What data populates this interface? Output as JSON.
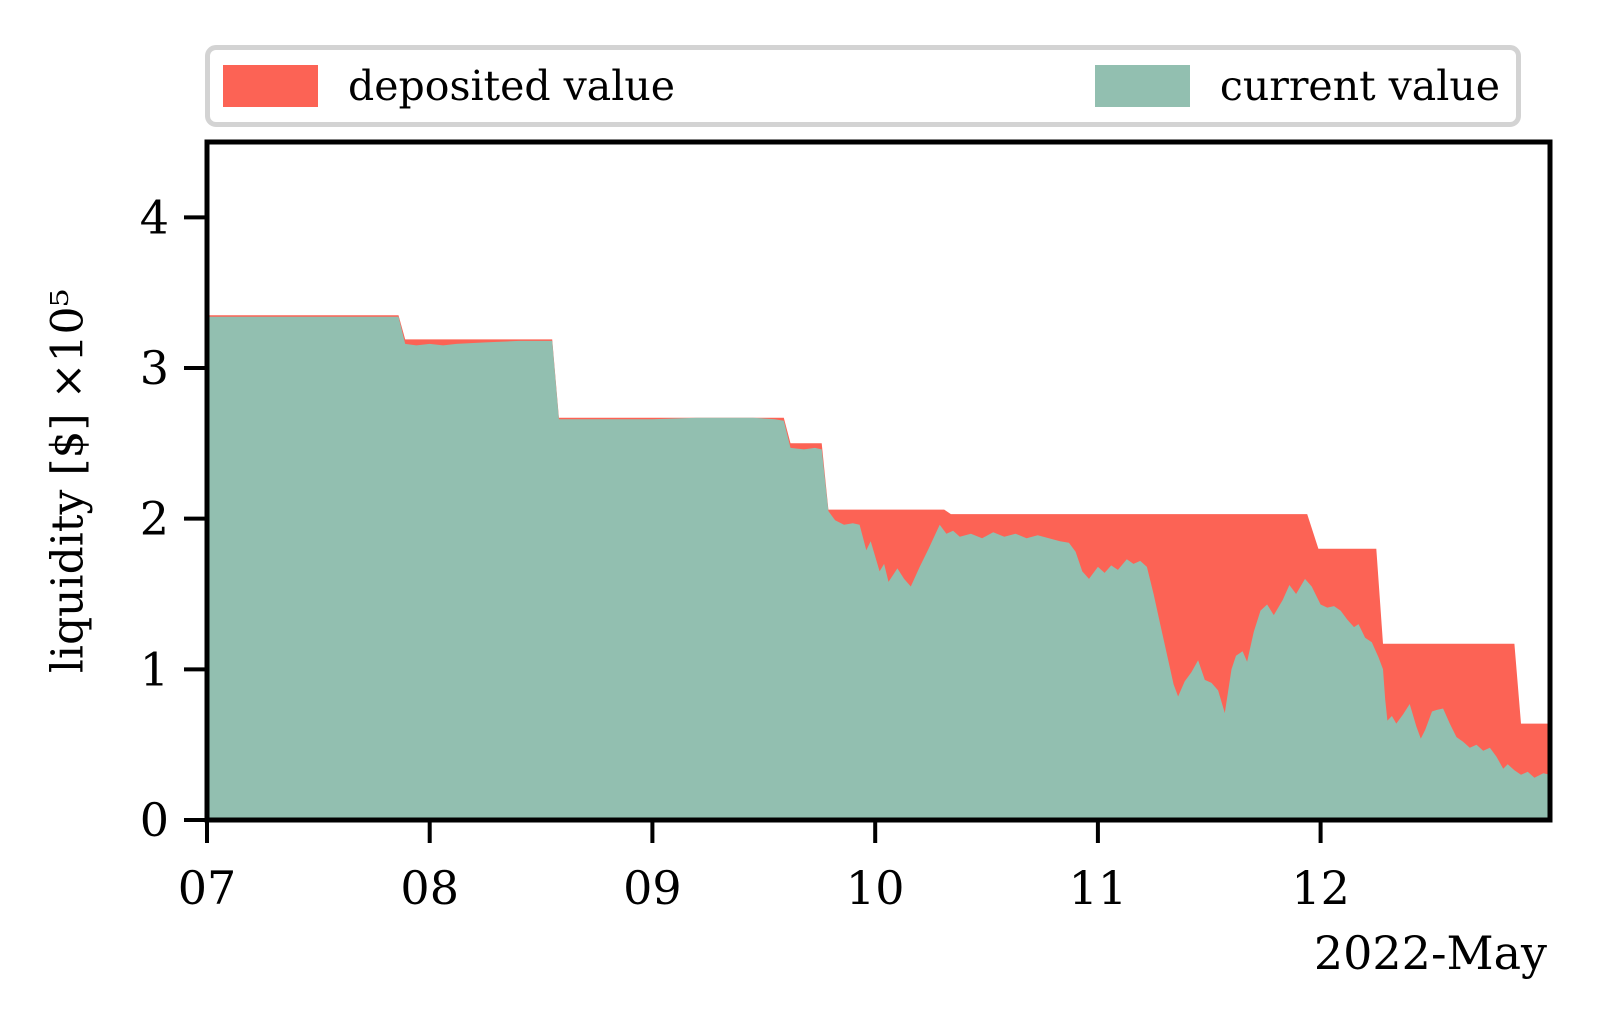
{
  "chart_data": {
    "type": "area",
    "title": "",
    "x_axis": {
      "label": "2022-May",
      "tick_labels": [
        "07",
        "08",
        "09",
        "10",
        "11",
        "12"
      ],
      "tick_values": [
        7,
        8,
        9,
        10,
        11,
        12
      ],
      "range": [
        7,
        13.03
      ]
    },
    "y_axis": {
      "label": "liquidity [$] ×10⁵",
      "tick_labels": [
        "0",
        "1",
        "2",
        "3",
        "4"
      ],
      "tick_values": [
        0,
        1,
        2,
        3,
        4
      ],
      "range": [
        0,
        4.5
      ]
    },
    "grid": "off",
    "legend": {
      "position": "top",
      "border_color": "#d3d3d3",
      "entries": [
        {
          "label": "deposited value",
          "color": "#fc6355"
        },
        {
          "label": "current value",
          "color": "#92bfb0"
        }
      ]
    },
    "series": [
      {
        "name": "deposited value",
        "color": "#fc6355",
        "points": [
          [
            7.0,
            3.35
          ],
          [
            7.86,
            3.35
          ],
          [
            7.89,
            3.19
          ],
          [
            8.55,
            3.19
          ],
          [
            8.58,
            2.67
          ],
          [
            9.59,
            2.67
          ],
          [
            9.62,
            2.5
          ],
          [
            9.76,
            2.5
          ],
          [
            9.79,
            2.06
          ],
          [
            10.31,
            2.06
          ],
          [
            10.34,
            2.03
          ],
          [
            11.94,
            2.03
          ],
          [
            11.99,
            1.8
          ],
          [
            12.25,
            1.8
          ],
          [
            12.28,
            1.17
          ],
          [
            12.87,
            1.17
          ],
          [
            12.9,
            0.64
          ],
          [
            13.03,
            0.64
          ]
        ]
      },
      {
        "name": "current value",
        "color": "#92bfb0",
        "points": [
          [
            7.0,
            3.34
          ],
          [
            7.4,
            3.34
          ],
          [
            7.86,
            3.34
          ],
          [
            7.89,
            3.16
          ],
          [
            7.94,
            3.15
          ],
          [
            8.0,
            3.16
          ],
          [
            8.06,
            3.15
          ],
          [
            8.12,
            3.16
          ],
          [
            8.25,
            3.17
          ],
          [
            8.4,
            3.18
          ],
          [
            8.55,
            3.18
          ],
          [
            8.58,
            2.66
          ],
          [
            8.8,
            2.66
          ],
          [
            9.0,
            2.66
          ],
          [
            9.2,
            2.67
          ],
          [
            9.45,
            2.67
          ],
          [
            9.55,
            2.66
          ],
          [
            9.59,
            2.65
          ],
          [
            9.62,
            2.47
          ],
          [
            9.68,
            2.46
          ],
          [
            9.73,
            2.47
          ],
          [
            9.76,
            2.46
          ],
          [
            9.79,
            2.05
          ],
          [
            9.82,
            1.99
          ],
          [
            9.86,
            1.96
          ],
          [
            9.9,
            1.97
          ],
          [
            9.93,
            1.96
          ],
          [
            9.96,
            1.79
          ],
          [
            9.98,
            1.85
          ],
          [
            10.02,
            1.65
          ],
          [
            10.04,
            1.7
          ],
          [
            10.06,
            1.58
          ],
          [
            10.1,
            1.67
          ],
          [
            10.13,
            1.6
          ],
          [
            10.16,
            1.55
          ],
          [
            10.2,
            1.68
          ],
          [
            10.24,
            1.8
          ],
          [
            10.29,
            1.96
          ],
          [
            10.32,
            1.9
          ],
          [
            10.35,
            1.92
          ],
          [
            10.38,
            1.88
          ],
          [
            10.43,
            1.9
          ],
          [
            10.48,
            1.87
          ],
          [
            10.53,
            1.91
          ],
          [
            10.58,
            1.88
          ],
          [
            10.63,
            1.9
          ],
          [
            10.68,
            1.87
          ],
          [
            10.73,
            1.89
          ],
          [
            10.78,
            1.87
          ],
          [
            10.83,
            1.85
          ],
          [
            10.87,
            1.84
          ],
          [
            10.9,
            1.78
          ],
          [
            10.93,
            1.65
          ],
          [
            10.96,
            1.6
          ],
          [
            11.0,
            1.68
          ],
          [
            11.03,
            1.64
          ],
          [
            11.06,
            1.69
          ],
          [
            11.09,
            1.66
          ],
          [
            11.13,
            1.73
          ],
          [
            11.16,
            1.7
          ],
          [
            11.19,
            1.72
          ],
          [
            11.22,
            1.68
          ],
          [
            11.25,
            1.5
          ],
          [
            11.28,
            1.3
          ],
          [
            11.31,
            1.1
          ],
          [
            11.34,
            0.9
          ],
          [
            11.36,
            0.82
          ],
          [
            11.39,
            0.92
          ],
          [
            11.42,
            0.98
          ],
          [
            11.45,
            1.06
          ],
          [
            11.48,
            0.93
          ],
          [
            11.51,
            0.91
          ],
          [
            11.54,
            0.86
          ],
          [
            11.57,
            0.71
          ],
          [
            11.6,
            1.0
          ],
          [
            11.62,
            1.09
          ],
          [
            11.65,
            1.12
          ],
          [
            11.67,
            1.05
          ],
          [
            11.7,
            1.25
          ],
          [
            11.73,
            1.39
          ],
          [
            11.76,
            1.43
          ],
          [
            11.79,
            1.36
          ],
          [
            11.83,
            1.46
          ],
          [
            11.86,
            1.56
          ],
          [
            11.89,
            1.5
          ],
          [
            11.93,
            1.6
          ],
          [
            11.96,
            1.55
          ],
          [
            12.0,
            1.43
          ],
          [
            12.03,
            1.41
          ],
          [
            12.06,
            1.42
          ],
          [
            12.09,
            1.39
          ],
          [
            12.12,
            1.33
          ],
          [
            12.15,
            1.28
          ],
          [
            12.17,
            1.3
          ],
          [
            12.2,
            1.21
          ],
          [
            12.23,
            1.18
          ],
          [
            12.26,
            1.08
          ],
          [
            12.28,
            1.0
          ],
          [
            12.29,
            0.8
          ],
          [
            12.3,
            0.66
          ],
          [
            12.32,
            0.69
          ],
          [
            12.34,
            0.64
          ],
          [
            12.37,
            0.7
          ],
          [
            12.4,
            0.77
          ],
          [
            12.43,
            0.62
          ],
          [
            12.45,
            0.54
          ],
          [
            12.47,
            0.6
          ],
          [
            12.5,
            0.72
          ],
          [
            12.52,
            0.73
          ],
          [
            12.55,
            0.74
          ],
          [
            12.58,
            0.64
          ],
          [
            12.61,
            0.55
          ],
          [
            12.64,
            0.52
          ],
          [
            12.67,
            0.48
          ],
          [
            12.7,
            0.5
          ],
          [
            12.73,
            0.46
          ],
          [
            12.76,
            0.48
          ],
          [
            12.79,
            0.42
          ],
          [
            12.82,
            0.34
          ],
          [
            12.84,
            0.37
          ],
          [
            12.87,
            0.33
          ],
          [
            12.9,
            0.3
          ],
          [
            12.93,
            0.32
          ],
          [
            12.96,
            0.28
          ],
          [
            13.0,
            0.31
          ],
          [
            13.03,
            0.3
          ]
        ]
      }
    ]
  }
}
